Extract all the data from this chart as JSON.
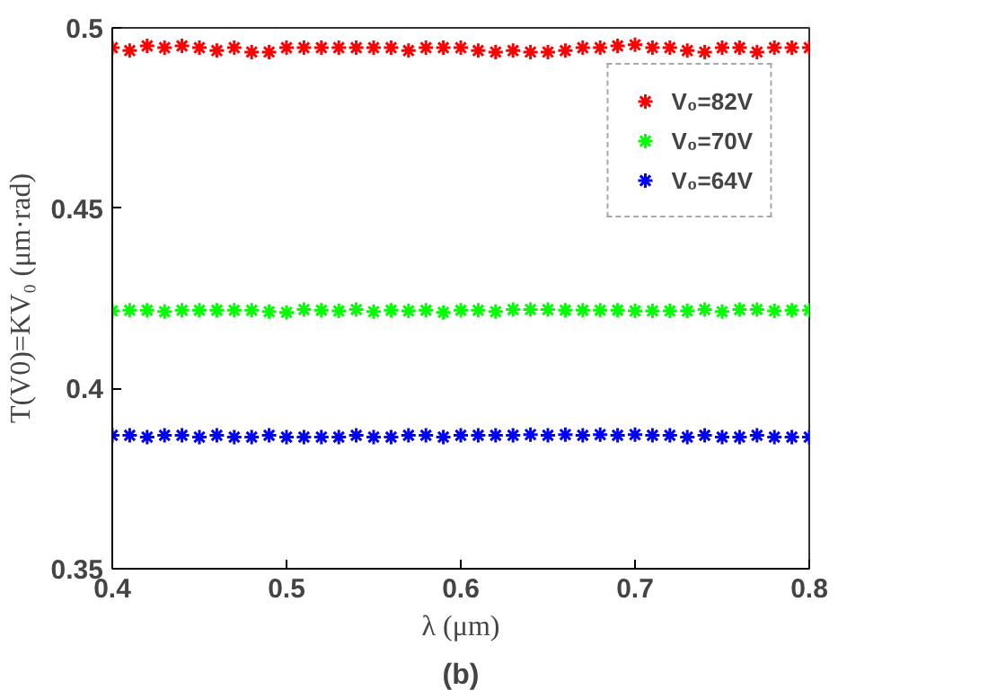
{
  "chart_data": {
    "type": "scatter",
    "xlabel": "λ (μm)",
    "ylabel": "T(V0)=KV₀ (μm·rad)",
    "x": [
      0.4,
      0.41,
      0.42,
      0.43,
      0.44,
      0.45,
      0.46,
      0.47,
      0.48,
      0.49,
      0.5,
      0.51,
      0.52,
      0.53,
      0.54,
      0.55,
      0.56,
      0.57,
      0.58,
      0.59,
      0.6,
      0.61,
      0.62,
      0.63,
      0.64,
      0.65,
      0.66,
      0.67,
      0.68,
      0.69,
      0.7,
      0.71,
      0.72,
      0.73,
      0.74,
      0.75,
      0.76,
      0.77,
      0.78,
      0.79,
      0.8
    ],
    "series": [
      {
        "name": "V₀=82V",
        "color": "#ff0000",
        "values": [
          0.4945,
          0.4937,
          0.495,
          0.4945,
          0.495,
          0.4945,
          0.4937,
          0.4945,
          0.4933,
          0.4933,
          0.4945,
          0.4945,
          0.4945,
          0.4945,
          0.4945,
          0.4945,
          0.4945,
          0.4937,
          0.4945,
          0.4945,
          0.4945,
          0.4937,
          0.4933,
          0.4937,
          0.4933,
          0.4933,
          0.4937,
          0.4945,
          0.4945,
          0.495,
          0.4953,
          0.4945,
          0.4945,
          0.4937,
          0.4933,
          0.4945,
          0.4945,
          0.4933,
          0.4945,
          0.4945,
          0.4945
        ]
      },
      {
        "name": "V₀=70V",
        "color": "#00ff00",
        "values": [
          0.4215,
          0.4217,
          0.4217,
          0.4213,
          0.4217,
          0.4217,
          0.4217,
          0.4217,
          0.4217,
          0.4213,
          0.4211,
          0.4219,
          0.4217,
          0.4215,
          0.4219,
          0.4213,
          0.4217,
          0.4215,
          0.4217,
          0.4211,
          0.4217,
          0.4217,
          0.4213,
          0.4219,
          0.4219,
          0.4219,
          0.4217,
          0.4217,
          0.4217,
          0.4217,
          0.4215,
          0.4215,
          0.4215,
          0.4215,
          0.4219,
          0.4213,
          0.4219,
          0.4219,
          0.4215,
          0.4217,
          0.4217
        ]
      },
      {
        "name": "V₀=64V",
        "color": "#0000ff",
        "values": [
          0.387,
          0.387,
          0.3865,
          0.387,
          0.387,
          0.3865,
          0.387,
          0.3865,
          0.3865,
          0.387,
          0.3865,
          0.3865,
          0.3865,
          0.3865,
          0.387,
          0.3865,
          0.3865,
          0.387,
          0.387,
          0.3865,
          0.387,
          0.387,
          0.387,
          0.387,
          0.3872,
          0.387,
          0.3872,
          0.387,
          0.3872,
          0.387,
          0.3872,
          0.387,
          0.387,
          0.3865,
          0.387,
          0.3865,
          0.3865,
          0.387,
          0.3865,
          0.3865,
          0.3865
        ]
      }
    ],
    "xlim": [
      0.4,
      0.8
    ],
    "ylim": [
      0.35,
      0.5
    ],
    "xticks": [
      0.4,
      0.5,
      0.6,
      0.7,
      0.8
    ],
    "yticks": [
      0.35,
      0.45,
      0.4,
      0.5
    ],
    "marker": "cross",
    "legend": "top right",
    "grid": false,
    "annotations": [
      "(b)"
    ]
  }
}
